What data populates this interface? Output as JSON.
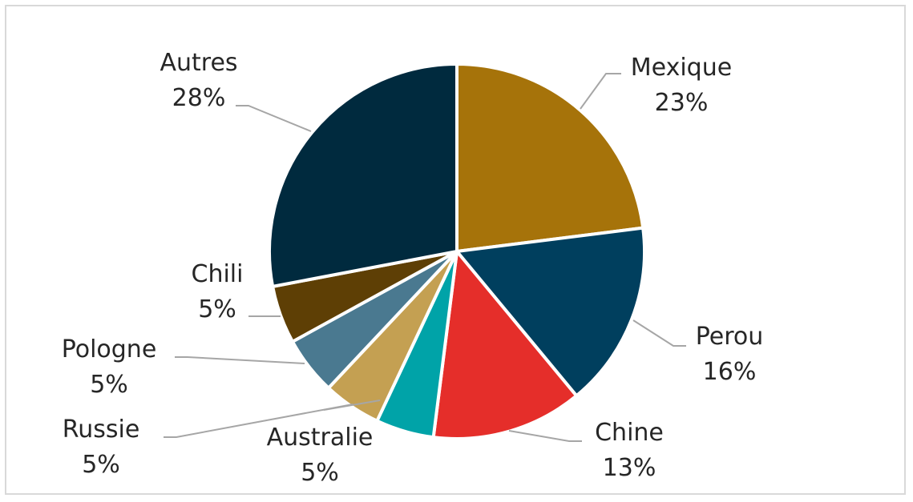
{
  "chart_data": {
    "type": "pie",
    "title": "",
    "start_angle_deg": 0,
    "direction": "clockwise",
    "slices": [
      {
        "name": "Mexique",
        "value": 23,
        "label": "23%",
        "color": "#A6730A"
      },
      {
        "name": "Perou",
        "value": 16,
        "label": "16%",
        "color": "#003F5E"
      },
      {
        "name": "Chine",
        "value": 13,
        "label": "13%",
        "color": "#E52E2A"
      },
      {
        "name": "Australie",
        "value": 5,
        "label": "5%",
        "color": "#00A3A8"
      },
      {
        "name": "Russie",
        "value": 5,
        "label": "5%",
        "color": "#C4A052"
      },
      {
        "name": "Pologne",
        "value": 5,
        "label": "5%",
        "color": "#4A7990"
      },
      {
        "name": "Chili",
        "value": 5,
        "label": "5%",
        "color": "#5E3F05"
      },
      {
        "name": "Autres",
        "value": 28,
        "label": "28%",
        "color": "#002A3E"
      }
    ],
    "separator_color": "#ffffff",
    "leader_line_color": "#a6a6a6",
    "label_color": "#262626"
  }
}
